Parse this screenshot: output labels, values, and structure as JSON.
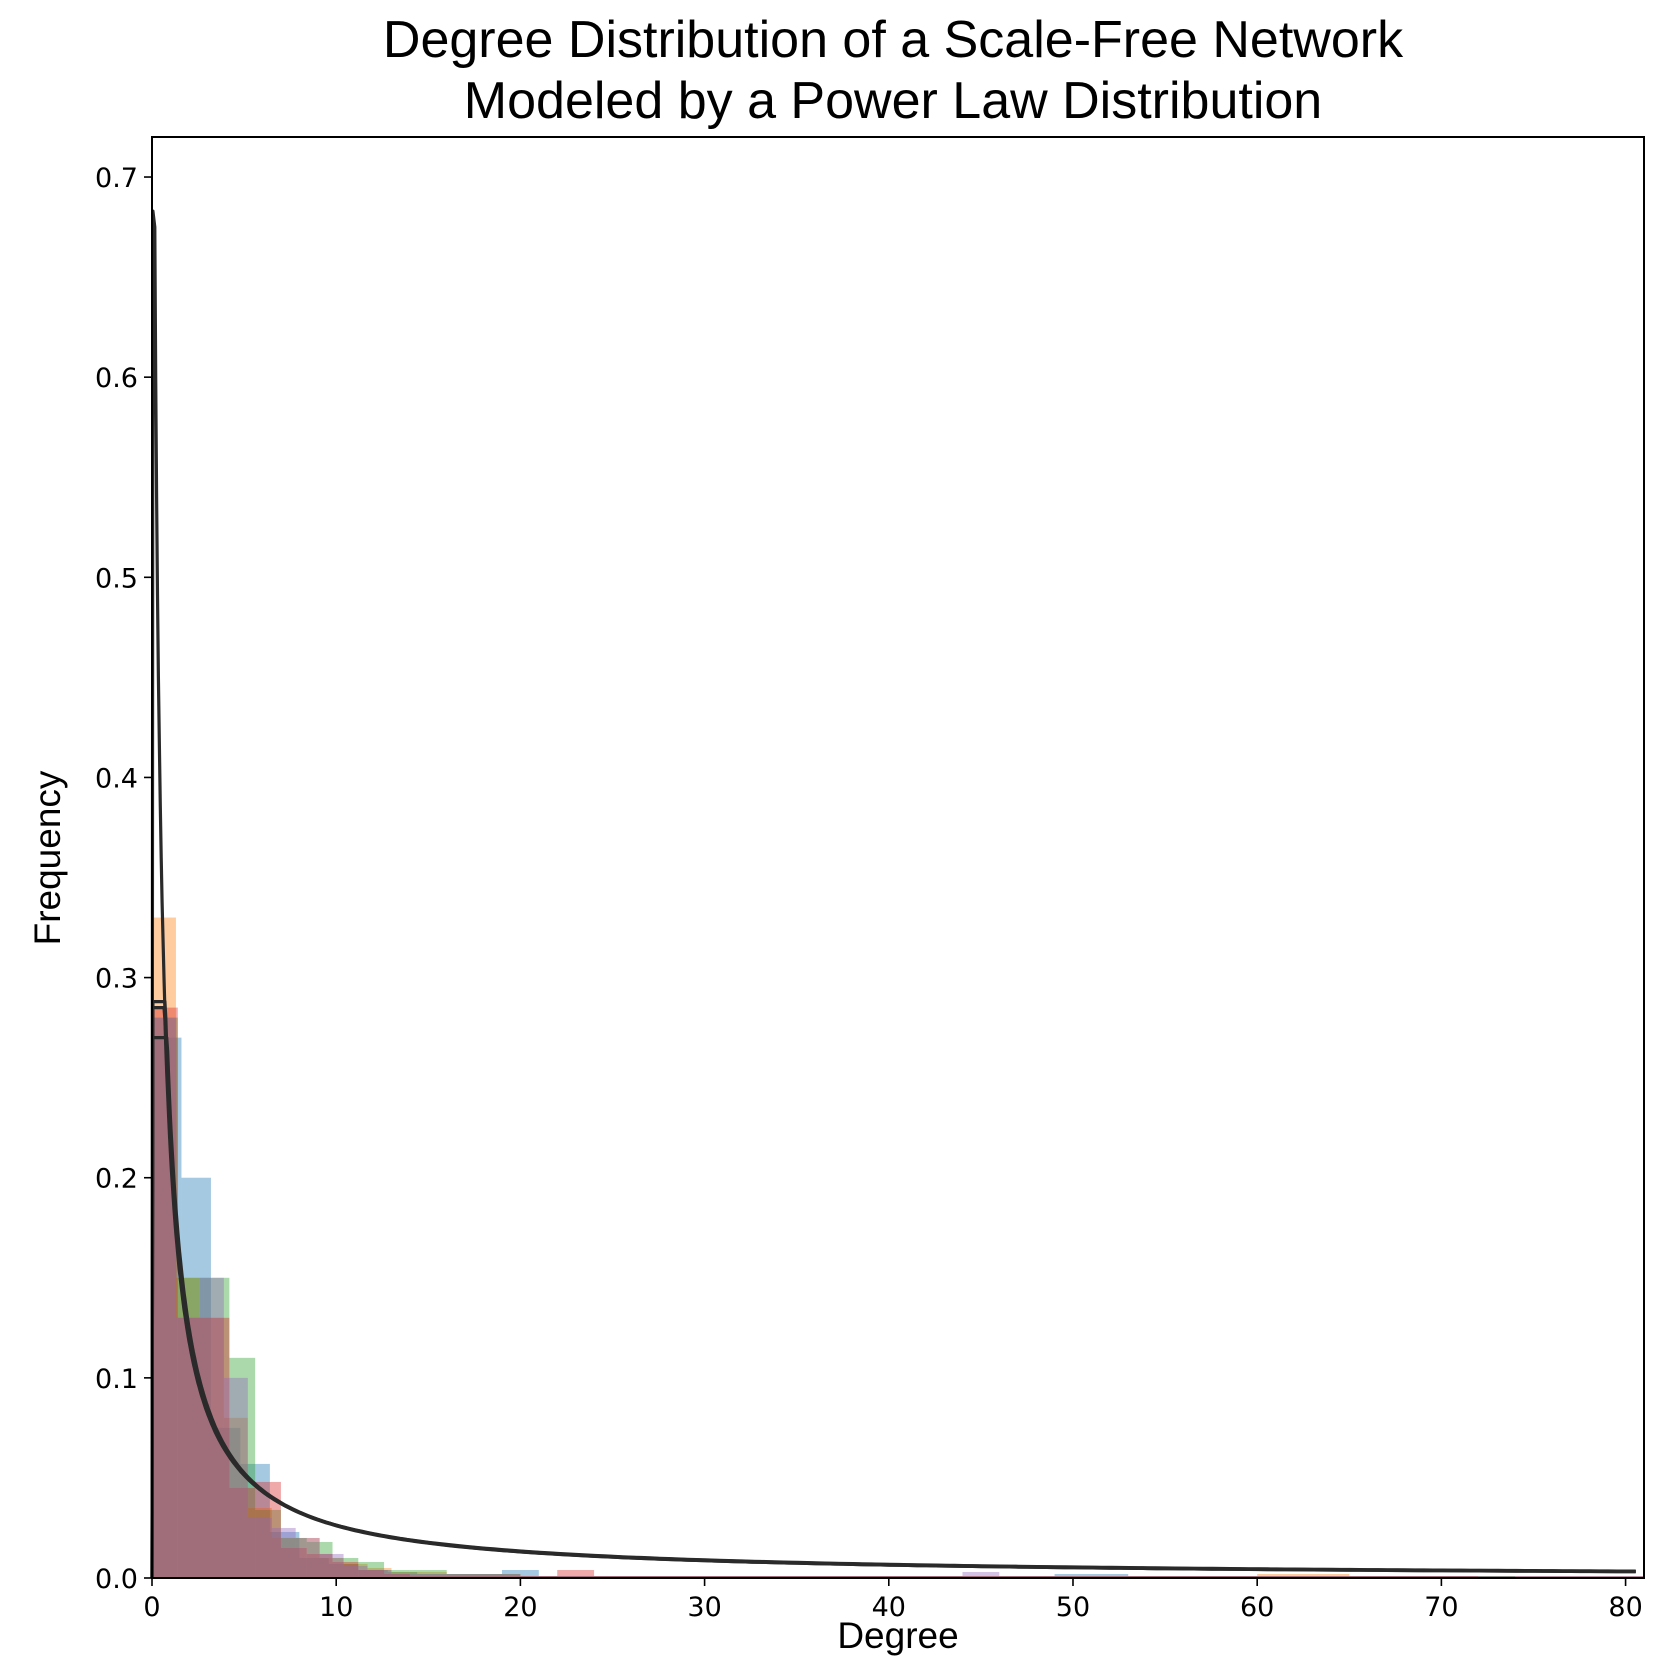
{
  "chart_data": {
    "type": "bar",
    "title": "Degree Distribution of a Scale-Free Network\nModeled by a Power Law Distribution",
    "xlabel": "Degree",
    "ylabel": "Frequency",
    "xlim": [
      0,
      81
    ],
    "ylim": [
      0,
      0.72
    ],
    "xticks": [
      "0",
      "10",
      "20",
      "30",
      "40",
      "50",
      "60",
      "70",
      "80"
    ],
    "yticks": [
      "0.0",
      "0.1",
      "0.2",
      "0.3",
      "0.4",
      "0.5",
      "0.6",
      "0.7"
    ],
    "grid": false,
    "legend": "none",
    "series": [
      {
        "color": "#1f77b4",
        "bins": [
          [
            0,
            1.6,
            0.27
          ],
          [
            1.6,
            3.2,
            0.2
          ],
          [
            3.2,
            4.8,
            0.075
          ],
          [
            4.8,
            6.4,
            0.057
          ],
          [
            6.4,
            8,
            0.023
          ],
          [
            8,
            9.6,
            0.01
          ],
          [
            9.6,
            11.2,
            0.007
          ],
          [
            11.2,
            12.8,
            0.004
          ],
          [
            12.8,
            14.4,
            0.003
          ],
          [
            14.4,
            16,
            0.002
          ],
          [
            16,
            19,
            0.002
          ],
          [
            19,
            21,
            0.004
          ],
          [
            21,
            28,
            0.001
          ],
          [
            28,
            30,
            0.001
          ],
          [
            30,
            40,
            0.001
          ],
          [
            40,
            49,
            0.001
          ],
          [
            49,
            53,
            0.002
          ],
          [
            53,
            70,
            0.001
          ],
          [
            70,
            81,
            0.001
          ]
        ]
      },
      {
        "color": "#ff7f0e",
        "bins": [
          [
            0,
            1.3,
            0.33
          ],
          [
            1.3,
            2.6,
            0.15
          ],
          [
            2.6,
            3.9,
            0.13
          ],
          [
            3.9,
            5.2,
            0.08
          ],
          [
            5.2,
            6.5,
            0.035
          ],
          [
            6.5,
            7.8,
            0.02
          ],
          [
            7.8,
            9.1,
            0.02
          ],
          [
            9.1,
            10.4,
            0.01
          ],
          [
            10.4,
            11.7,
            0.007
          ],
          [
            11.7,
            13,
            0.005
          ],
          [
            13,
            16,
            0.003
          ],
          [
            16,
            20,
            0.002
          ],
          [
            20,
            30,
            0.001
          ],
          [
            30,
            60,
            0.001
          ],
          [
            60,
            65,
            0.002
          ],
          [
            65,
            81,
            0.001
          ]
        ]
      },
      {
        "color": "#2ca02c",
        "bins": [
          [
            0,
            1.4,
            0.28
          ],
          [
            1.4,
            2.8,
            0.15
          ],
          [
            2.8,
            4.2,
            0.15
          ],
          [
            4.2,
            5.6,
            0.11
          ],
          [
            5.6,
            7.0,
            0.034
          ],
          [
            7.0,
            8.4,
            0.02
          ],
          [
            8.4,
            9.8,
            0.018
          ],
          [
            9.8,
            11.2,
            0.01
          ],
          [
            11.2,
            12.6,
            0.008
          ],
          [
            12.6,
            14,
            0.004
          ],
          [
            14,
            16,
            0.004
          ],
          [
            16,
            20,
            0.002
          ],
          [
            20,
            40,
            0.001
          ],
          [
            40,
            74,
            0.001
          ]
        ]
      },
      {
        "color": "#d62728",
        "bins": [
          [
            0,
            1.4,
            0.285
          ],
          [
            1.4,
            2.8,
            0.13
          ],
          [
            2.8,
            4.2,
            0.13
          ],
          [
            4.2,
            5.6,
            0.045
          ],
          [
            5.6,
            7.0,
            0.048
          ],
          [
            7.0,
            8.4,
            0.015
          ],
          [
            8.4,
            9.8,
            0.012
          ],
          [
            9.8,
            11.2,
            0.008
          ],
          [
            11.2,
            12.6,
            0.004
          ],
          [
            12.6,
            14,
            0.002
          ],
          [
            14,
            22,
            0.001
          ],
          [
            22,
            24,
            0.004
          ],
          [
            24,
            40,
            0.001
          ],
          [
            40,
            72,
            0.001
          ]
        ]
      },
      {
        "color": "#9467bd",
        "bins": [
          [
            0,
            1.3,
            0.28
          ],
          [
            1.3,
            2.6,
            0.13
          ],
          [
            2.6,
            3.9,
            0.15
          ],
          [
            3.9,
            5.2,
            0.1
          ],
          [
            5.2,
            6.5,
            0.03
          ],
          [
            6.5,
            7.8,
            0.025
          ],
          [
            7.8,
            9.1,
            0.02
          ],
          [
            9.1,
            10.4,
            0.012
          ],
          [
            10.4,
            11.7,
            0.006
          ],
          [
            11.7,
            13,
            0.004
          ],
          [
            13,
            20,
            0.002
          ],
          [
            20,
            44,
            0.001
          ],
          [
            44,
            46,
            0.003
          ],
          [
            46,
            81,
            0.001
          ]
        ]
      }
    ],
    "curves": [
      {
        "color": "#2a2a2a",
        "a": 0.28,
        "alpha": 1.02,
        "start": 0.0,
        "peak": 0.288
      },
      {
        "color": "#2a2a2a",
        "a": 0.265,
        "alpha": 0.99,
        "start": 0.0,
        "peak": 0.285
      },
      {
        "color": "#2a2a2a",
        "a": 0.29,
        "alpha": 1.03,
        "start": 0.0,
        "peak": 0.27
      },
      {
        "color": "#2a2a2a",
        "a": 0.27,
        "alpha": 1.0,
        "start": 0.0,
        "peak": 0.683
      }
    ]
  }
}
